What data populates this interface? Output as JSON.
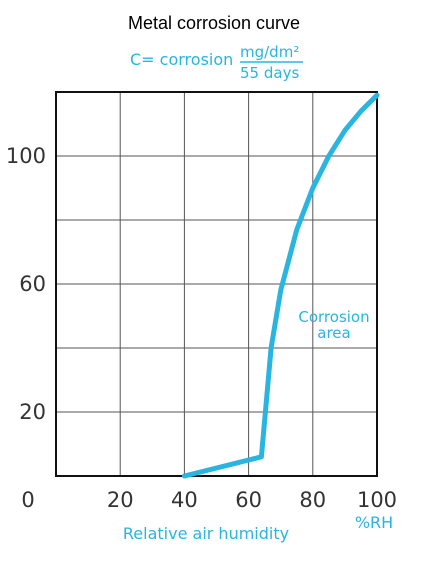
{
  "chart_data": {
    "type": "line",
    "title": "Metal corrosion curve",
    "ylabel_prefix": "C= corrosion",
    "ylabel_unit_numerator": "mg/dm²",
    "ylabel_unit_denominator": "55 days",
    "xlabel": "Relative air humidity",
    "xunit": "%RH",
    "xlim": [
      0,
      100
    ],
    "ylim": [
      0,
      120
    ],
    "xticks": [
      "0",
      "20",
      "40",
      "60",
      "80",
      "100"
    ],
    "yticks": [
      "20",
      "60",
      "100"
    ],
    "grid": true,
    "series": [
      {
        "x": [
          40,
          64,
          67,
          70,
          75,
          80,
          85,
          90,
          95,
          100
        ],
        "y": [
          0,
          6,
          40,
          58,
          77,
          90,
          100,
          108,
          114,
          119
        ]
      }
    ],
    "annotations": [
      {
        "line1": "Corrosion",
        "line2": "area"
      }
    ],
    "colors": {
      "line": "#29b5e0",
      "text_accent": "#29b5e0",
      "grid": "#555555",
      "frame": "#111111"
    }
  }
}
